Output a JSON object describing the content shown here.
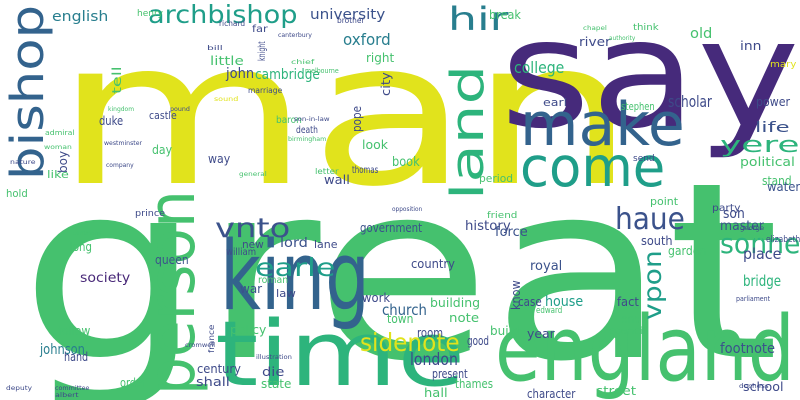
{
  "words": [
    {
      "text": "great",
      "color": "#45c16e"
    },
    {
      "text": "man",
      "color": "#e1e31c"
    },
    {
      "text": "say",
      "color": "#462a7b"
    },
    {
      "text": "time",
      "color": "#2db47c"
    },
    {
      "text": "england",
      "color": "#45c16e"
    },
    {
      "text": "king",
      "color": "#33638d"
    },
    {
      "text": "make",
      "color": "#33638d"
    },
    {
      "text": "person",
      "color": "#45c16e"
    },
    {
      "text": "come",
      "color": "#1f9e89"
    },
    {
      "text": "land",
      "color": "#2db47c"
    },
    {
      "text": "bishop",
      "color": "#33638d"
    },
    {
      "text": "archbishop",
      "color": "#1f9e89"
    },
    {
      "text": "hir",
      "color": "#287e8e"
    },
    {
      "text": "vnto",
      "color": "#3b528b"
    },
    {
      "text": "earle",
      "color": "#1f9e89"
    },
    {
      "text": "sidenote",
      "color": "#e1e31c"
    },
    {
      "text": "haue",
      "color": "#3b528b"
    },
    {
      "text": "sonne",
      "color": "#2db47c"
    },
    {
      "text": "vpon",
      "color": "#1f9e89"
    },
    {
      "text": "y⁠ere",
      "color": "#2db47c"
    },
    {
      "text": "london",
      "color": "#3e4a89"
    },
    {
      "text": "church",
      "color": "#33638d"
    },
    {
      "text": "oxford",
      "color": "#287e8e"
    },
    {
      "text": "university",
      "color": "#3b528b"
    },
    {
      "text": "cambridge",
      "color": "#2db47c"
    },
    {
      "text": "john",
      "color": "#3e4a89"
    },
    {
      "text": "english",
      "color": "#287e8e"
    },
    {
      "text": "college",
      "color": "#2db47c"
    },
    {
      "text": "place",
      "color": "#3e4a89"
    },
    {
      "text": "bridge",
      "color": "#2db47c"
    },
    {
      "text": "master",
      "color": "#3b528b"
    },
    {
      "text": "scholar",
      "color": "#3e4a89"
    },
    {
      "text": "son",
      "color": "#3e4a89"
    },
    {
      "text": "society",
      "color": "#482878"
    },
    {
      "text": "lord",
      "color": "#3b528b"
    },
    {
      "text": "house",
      "color": "#1f9e89"
    },
    {
      "text": "royal",
      "color": "#3b528b"
    },
    {
      "text": "government",
      "color": "#3b528b"
    },
    {
      "text": "history",
      "color": "#3e4a89"
    },
    {
      "text": "force",
      "color": "#3b528b"
    },
    {
      "text": "johnson",
      "color": "#287e8e"
    },
    {
      "text": "footnote",
      "color": "#3b528b"
    },
    {
      "text": "book",
      "color": "#45c16e"
    },
    {
      "text": "life",
      "color": "#3b528b"
    },
    {
      "text": "old",
      "color": "#45c16e"
    },
    {
      "text": "inn",
      "color": "#3e4a89"
    },
    {
      "text": "power",
      "color": "#3e4a89"
    },
    {
      "text": "political",
      "color": "#45c16e"
    },
    {
      "text": "stand",
      "color": "#45c16e"
    },
    {
      "text": "water",
      "color": "#3b528b"
    },
    {
      "text": "queen",
      "color": "#3b528b"
    },
    {
      "text": "long",
      "color": "#45c16e"
    },
    {
      "text": "war",
      "color": "#3b528b"
    },
    {
      "text": "new",
      "color": "#3e4a89"
    },
    {
      "text": "law",
      "color": "#3e4a89"
    },
    {
      "text": "work",
      "color": "#3e4a89"
    },
    {
      "text": "building",
      "color": "#45c16e"
    },
    {
      "text": "note",
      "color": "#45c16e"
    },
    {
      "text": "country",
      "color": "#3e4a89"
    },
    {
      "text": "town",
      "color": "#45c16e"
    },
    {
      "text": "case",
      "color": "#3e4a89"
    },
    {
      "text": "fact",
      "color": "#3e4a89"
    },
    {
      "text": "end",
      "color": "#45c16e"
    },
    {
      "text": "garden",
      "color": "#45c16e"
    },
    {
      "text": "south",
      "color": "#3e4a89"
    },
    {
      "text": "hand",
      "color": "#3e4a89"
    },
    {
      "text": "follow",
      "color": "#45c16e"
    },
    {
      "text": "order",
      "color": "#45c16e"
    },
    {
      "text": "policy",
      "color": "#45c16e"
    },
    {
      "text": "century",
      "color": "#3e4a89"
    },
    {
      "text": "shall",
      "color": "#3e4a89"
    },
    {
      "text": "die",
      "color": "#3e4a89"
    },
    {
      "text": "state",
      "color": "#45c16e"
    },
    {
      "text": "room",
      "color": "#3e4a89"
    },
    {
      "text": "present",
      "color": "#3e4a89"
    },
    {
      "text": "hall",
      "color": "#45c16e"
    },
    {
      "text": "thames",
      "color": "#45c16e"
    },
    {
      "text": "good",
      "color": "#3e4a89"
    },
    {
      "text": "build",
      "color": "#45c16e"
    },
    {
      "text": "year",
      "color": "#3e4a89"
    },
    {
      "text": "character",
      "color": "#3e4a89"
    },
    {
      "text": "street",
      "color": "#45c16e"
    },
    {
      "text": "school",
      "color": "#3e4a89"
    },
    {
      "text": "council",
      "color": "#45c16e"
    },
    {
      "text": "way",
      "color": "#3e4a89"
    },
    {
      "text": "day",
      "color": "#45c16e"
    },
    {
      "text": "duke",
      "color": "#3e4a89"
    },
    {
      "text": "castle",
      "color": "#3e4a89"
    },
    {
      "text": "little",
      "color": "#45c16e"
    },
    {
      "text": "right",
      "color": "#45c16e"
    },
    {
      "text": "city",
      "color": "#3e4a89"
    },
    {
      "text": "river",
      "color": "#3e4a89"
    },
    {
      "text": "earl",
      "color": "#3e4a89"
    },
    {
      "text": "stephen",
      "color": "#45c16e"
    },
    {
      "text": "look",
      "color": "#45c16e"
    },
    {
      "text": "pope",
      "color": "#3e4a89"
    },
    {
      "text": "wall",
      "color": "#3e4a89"
    },
    {
      "text": "thomas",
      "color": "#3e4a89"
    },
    {
      "text": "period",
      "color": "#45c16e"
    },
    {
      "text": "point",
      "color": "#45c16e"
    },
    {
      "text": "party",
      "color": "#3e4a89"
    },
    {
      "text": "sir",
      "color": "#45c16e"
    },
    {
      "text": "elizabeth",
      "color": "#3e4a89"
    },
    {
      "text": "lane",
      "color": "#3e4a89"
    },
    {
      "text": "william",
      "color": "#3e4a89"
    },
    {
      "text": "roman",
      "color": "#45c16e"
    },
    {
      "text": "boy",
      "color": "#3e4a89"
    },
    {
      "text": "like",
      "color": "#45c16e"
    },
    {
      "text": "hold",
      "color": "#45c16e"
    },
    {
      "text": "break",
      "color": "#45c16e"
    },
    {
      "text": "brother",
      "color": "#3e4a89"
    },
    {
      "text": "richard",
      "color": "#3e4a89"
    },
    {
      "text": "henry",
      "color": "#45c16e"
    },
    {
      "text": "far",
      "color": "#3e4a89"
    },
    {
      "text": "marriage",
      "color": "#3e4a89"
    },
    {
      "text": "baron",
      "color": "#45c16e"
    },
    {
      "text": "death",
      "color": "#3e4a89"
    },
    {
      "text": "letter",
      "color": "#45c16e"
    },
    {
      "text": "know",
      "color": "#3e4a89"
    },
    {
      "text": "edward",
      "color": "#45c16e"
    },
    {
      "text": "send",
      "color": "#3e4a89"
    },
    {
      "text": "think",
      "color": "#45c16e"
    },
    {
      "text": "france",
      "color": "#3e4a89"
    },
    {
      "text": "tell",
      "color": "#45c16e"
    },
    {
      "text": "mary",
      "color": "#e1e31c"
    },
    {
      "text": "prince",
      "color": "#3e4a89"
    },
    {
      "text": "friend",
      "color": "#45c16e"
    },
    {
      "text": "canterbury",
      "color": "#3e4a89"
    },
    {
      "text": "chapel",
      "color": "#45c16e"
    },
    {
      "text": "knight",
      "color": "#3e4a89"
    },
    {
      "text": "authority",
      "color": "#45c16e"
    },
    {
      "text": "parliament",
      "color": "#3e4a89"
    },
    {
      "text": "opposition",
      "color": "#3e4a89"
    },
    {
      "text": "melbourne",
      "color": "#45c16e"
    },
    {
      "text": "illustration",
      "color": "#3e4a89"
    },
    {
      "text": "cromwell",
      "color": "#3e4a89"
    },
    {
      "text": "commons",
      "color": "#45c16e"
    },
    {
      "text": "westminster",
      "color": "#3e4a89"
    },
    {
      "text": "admiral",
      "color": "#45c16e"
    },
    {
      "text": "deputy",
      "color": "#3e4a89"
    },
    {
      "text": "committee",
      "color": "#3e4a89"
    },
    {
      "text": "albert",
      "color": "#3e4a89"
    },
    {
      "text": "woman",
      "color": "#45c16e"
    },
    {
      "text": "nature",
      "color": "#3e4a89"
    },
    {
      "text": "company",
      "color": "#3e4a89"
    },
    {
      "text": "birmingham",
      "color": "#45c16e"
    },
    {
      "text": "chief",
      "color": "#45c16e"
    },
    {
      "text": "pound",
      "color": "#3e4a89"
    },
    {
      "text": "son-in-law",
      "color": "#3e4a89"
    },
    {
      "text": "kingdom",
      "color": "#45c16e"
    },
    {
      "text": "sound",
      "color": "#e1e31c"
    },
    {
      "text": "george",
      "color": "#3e4a89"
    },
    {
      "text": "duchess",
      "color": "#3e4a89"
    },
    {
      "text": "general",
      "color": "#45c16e"
    },
    {
      "text": "bill",
      "color": "#3e4a89"
    }
  ]
}
